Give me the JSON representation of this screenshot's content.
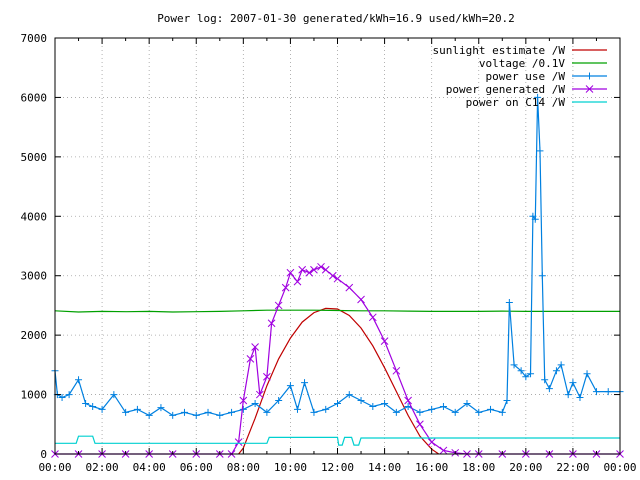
{
  "chart_data": {
    "type": "line",
    "title": "Power log: 2007-01-30 generated/kWh=16.9 used/kWh=20.2",
    "xlabel": "",
    "ylabel": "",
    "xlim": [
      0,
      24
    ],
    "ylim": [
      0,
      7000
    ],
    "grid": true,
    "legend_position": "top-right",
    "x_ticks": [
      0,
      2,
      4,
      6,
      8,
      10,
      12,
      14,
      16,
      18,
      20,
      22,
      24
    ],
    "x_tick_labels": [
      "00:00",
      "02:00",
      "04:00",
      "06:00",
      "08:00",
      "10:00",
      "12:00",
      "14:00",
      "16:00",
      "18:00",
      "20:00",
      "22:00",
      "00:00"
    ],
    "y_ticks": [
      0,
      1000,
      2000,
      3000,
      4000,
      5000,
      6000,
      7000
    ],
    "y_tick_labels": [
      "0",
      "1000",
      "2000",
      "3000",
      "4000",
      "5000",
      "6000",
      "7000"
    ],
    "series": [
      {
        "name": "sunlight estimate /W",
        "color": "#c00000",
        "marker": "none",
        "x": [
          7.8,
          8.0,
          8.5,
          9.0,
          9.5,
          10.0,
          10.5,
          11.0,
          11.5,
          12.0,
          12.5,
          13.0,
          13.5,
          14.0,
          14.5,
          15.0,
          15.5,
          16.0,
          16.3
        ],
        "y": [
          0,
          100,
          600,
          1150,
          1600,
          1950,
          2220,
          2380,
          2450,
          2440,
          2330,
          2120,
          1820,
          1450,
          1050,
          650,
          300,
          80,
          0
        ]
      },
      {
        "name": "voltage /0.1V",
        "color": "#00a000",
        "marker": "none",
        "x": [
          0,
          1,
          2,
          3,
          4,
          5,
          6,
          7,
          8,
          9,
          10,
          11,
          12,
          13,
          14,
          15,
          16,
          17,
          18,
          19,
          20,
          21,
          22,
          23,
          24
        ],
        "y": [
          2410,
          2390,
          2400,
          2395,
          2400,
          2390,
          2395,
          2400,
          2410,
          2420,
          2420,
          2420,
          2415,
          2410,
          2410,
          2405,
          2400,
          2400,
          2400,
          2405,
          2400,
          2400,
          2400,
          2400,
          2400
        ]
      },
      {
        "name": "power use /W",
        "color": "#0080e0",
        "marker": "plus",
        "x": [
          0,
          0.1,
          0.3,
          0.6,
          1.0,
          1.3,
          1.6,
          2.0,
          2.5,
          3.0,
          3.5,
          4.0,
          4.5,
          5.0,
          5.5,
          6.0,
          6.5,
          7.0,
          7.5,
          8.0,
          8.5,
          9.0,
          9.5,
          10.0,
          10.3,
          10.6,
          11.0,
          11.5,
          12.0,
          12.5,
          13.0,
          13.5,
          14.0,
          14.5,
          15.0,
          15.5,
          16.0,
          16.5,
          17.0,
          17.5,
          18.0,
          18.5,
          19.0,
          19.2,
          19.3,
          19.5,
          19.8,
          20.0,
          20.2,
          20.3,
          20.4,
          20.5,
          20.6,
          20.7,
          20.8,
          21.0,
          21.3,
          21.5,
          21.8,
          22.0,
          22.3,
          22.6,
          23.0,
          23.5,
          24.0
        ],
        "y": [
          1400,
          1000,
          950,
          1000,
          1250,
          850,
          800,
          750,
          1000,
          700,
          750,
          650,
          780,
          650,
          700,
          650,
          700,
          650,
          700,
          750,
          850,
          700,
          900,
          1150,
          750,
          1200,
          700,
          750,
          850,
          1000,
          900,
          800,
          850,
          700,
          800,
          700,
          750,
          800,
          700,
          850,
          700,
          750,
          700,
          900,
          2550,
          1500,
          1400,
          1300,
          1350,
          4000,
          3950,
          6000,
          5100,
          3000,
          1250,
          1100,
          1400,
          1500,
          1000,
          1200,
          950,
          1350,
          1050,
          1050,
          1050
        ]
      },
      {
        "name": "power generated /W",
        "color": "#a000e0",
        "marker": "cross",
        "x": [
          0,
          1,
          2,
          3,
          4,
          5,
          6,
          7,
          7.5,
          7.8,
          8.0,
          8.3,
          8.5,
          8.7,
          9.0,
          9.2,
          9.5,
          9.8,
          10.0,
          10.3,
          10.5,
          10.8,
          11.0,
          11.3,
          11.5,
          11.8,
          12.0,
          12.5,
          13.0,
          13.5,
          14.0,
          14.5,
          15.0,
          15.5,
          16.0,
          16.5,
          17.0,
          17.5,
          18.0,
          19.0,
          20.0,
          21.0,
          22.0,
          23.0,
          24.0
        ],
        "y": [
          0,
          0,
          0,
          0,
          0,
          0,
          0,
          0,
          0,
          200,
          900,
          1600,
          1800,
          1000,
          1300,
          2200,
          2500,
          2800,
          3050,
          2900,
          3100,
          3050,
          3100,
          3150,
          3100,
          3000,
          2950,
          2800,
          2600,
          2300,
          1900,
          1400,
          900,
          500,
          200,
          60,
          20,
          0,
          0,
          0,
          0,
          0,
          0,
          0,
          0
        ]
      },
      {
        "name": "power on C14 /W",
        "color": "#00d0d0",
        "marker": "none",
        "x": [
          0,
          0.9,
          1.0,
          1.6,
          1.7,
          9.0,
          9.1,
          12.0,
          12.05,
          12.2,
          12.3,
          12.6,
          12.7,
          12.9,
          13.0,
          24.0
        ],
        "y": [
          180,
          180,
          300,
          300,
          180,
          180,
          280,
          280,
          150,
          150,
          280,
          280,
          150,
          150,
          270,
          270
        ]
      }
    ]
  }
}
